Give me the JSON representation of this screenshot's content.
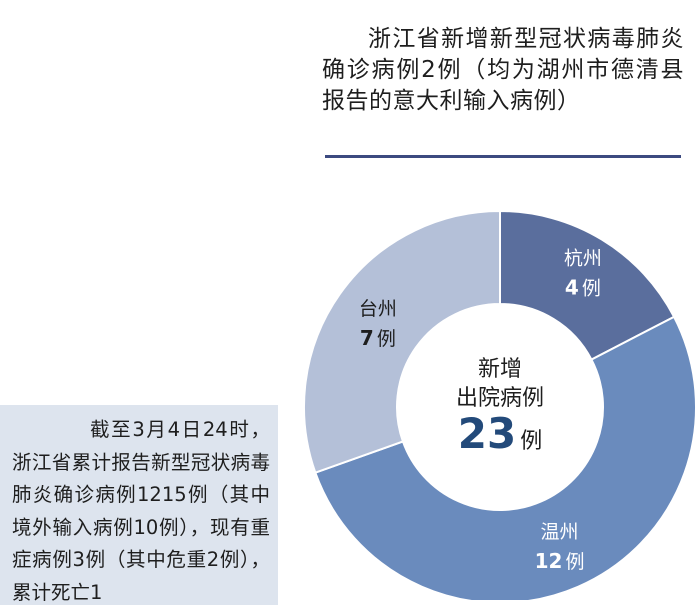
{
  "headline": "浙江省新增新型冠状病毒肺炎确诊病例2例（均为湖州市德清县报告的意大利输入病例）",
  "summary": "截至3月4日24时，浙江省累计报告新型冠状病毒肺炎确诊病例1215例（其中境外输入病例10例），现有重症病例3例（其中危重2例），累计死亡1",
  "chart_data": {
    "type": "pie",
    "variant": "donut",
    "center_label": {
      "line1": "新增",
      "line2": "出院病例",
      "value": "23",
      "unit": "例"
    },
    "slices": [
      {
        "label": "杭州",
        "value": 4,
        "value_text": "4",
        "unit": "例",
        "color": "#5a6e9d",
        "text_color": "#ffffff"
      },
      {
        "label": "温州",
        "value": 12,
        "value_text": "12",
        "unit": "例",
        "color": "#6a8bbd",
        "text_color": "#ffffff"
      },
      {
        "label": "台州",
        "value": 7,
        "value_text": "7",
        "unit": "例",
        "color": "#b4c0d8",
        "text_color": "#1e1e1e"
      }
    ],
    "start": "top",
    "direction": "clockwise",
    "total_color": "#234a7a"
  }
}
